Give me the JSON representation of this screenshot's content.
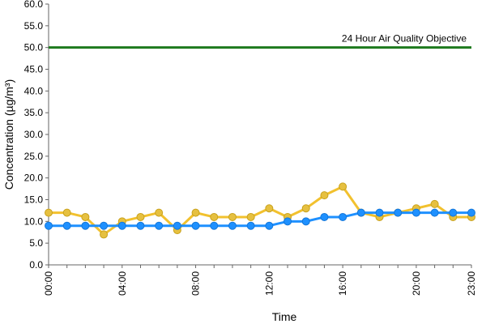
{
  "chart_data": {
    "type": "line",
    "xlabel": "Time",
    "ylabel": "Concentration (µg/m³)",
    "ylim": [
      0,
      60
    ],
    "ytick_labels": [
      "0.0",
      "5.0",
      "10.0",
      "15.0",
      "20.0",
      "25.0",
      "30.0",
      "35.0",
      "40.0",
      "45.0",
      "50.0",
      "55.0",
      "60.0"
    ],
    "x_hours": [
      0,
      1,
      2,
      3,
      4,
      5,
      6,
      7,
      8,
      9,
      10,
      11,
      12,
      13,
      14,
      15,
      16,
      17,
      18,
      19,
      20,
      21,
      22,
      23
    ],
    "x_tick_labels": [
      {
        "hour": 0,
        "label": "00:00"
      },
      {
        "hour": 4,
        "label": "04:00"
      },
      {
        "hour": 8,
        "label": "08:00"
      },
      {
        "hour": 12,
        "label": "12:00"
      },
      {
        "hour": 16,
        "label": "16:00"
      },
      {
        "hour": 20,
        "label": "20:00"
      },
      {
        "hour": 23,
        "label": "23:00"
      }
    ],
    "series": [
      {
        "color": "#f2c12e",
        "marker_color": "#e6c040",
        "values": [
          12,
          12,
          11,
          7,
          10,
          11,
          12,
          8,
          12,
          11,
          11,
          11,
          13,
          11,
          13,
          16,
          18,
          12,
          11,
          12,
          13,
          14,
          11,
          11
        ]
      },
      {
        "color": "#1e90ff",
        "marker_color": "#1e90ff",
        "values": [
          9,
          9,
          9,
          9,
          9,
          9,
          9,
          9,
          9,
          9,
          9,
          9,
          9,
          10,
          10,
          11,
          11,
          12,
          12,
          12,
          12,
          12,
          12,
          12
        ]
      }
    ],
    "threshold": {
      "value": 50,
      "label": "24 Hour Air Quality Objective",
      "color": "#1e7a1e"
    }
  }
}
